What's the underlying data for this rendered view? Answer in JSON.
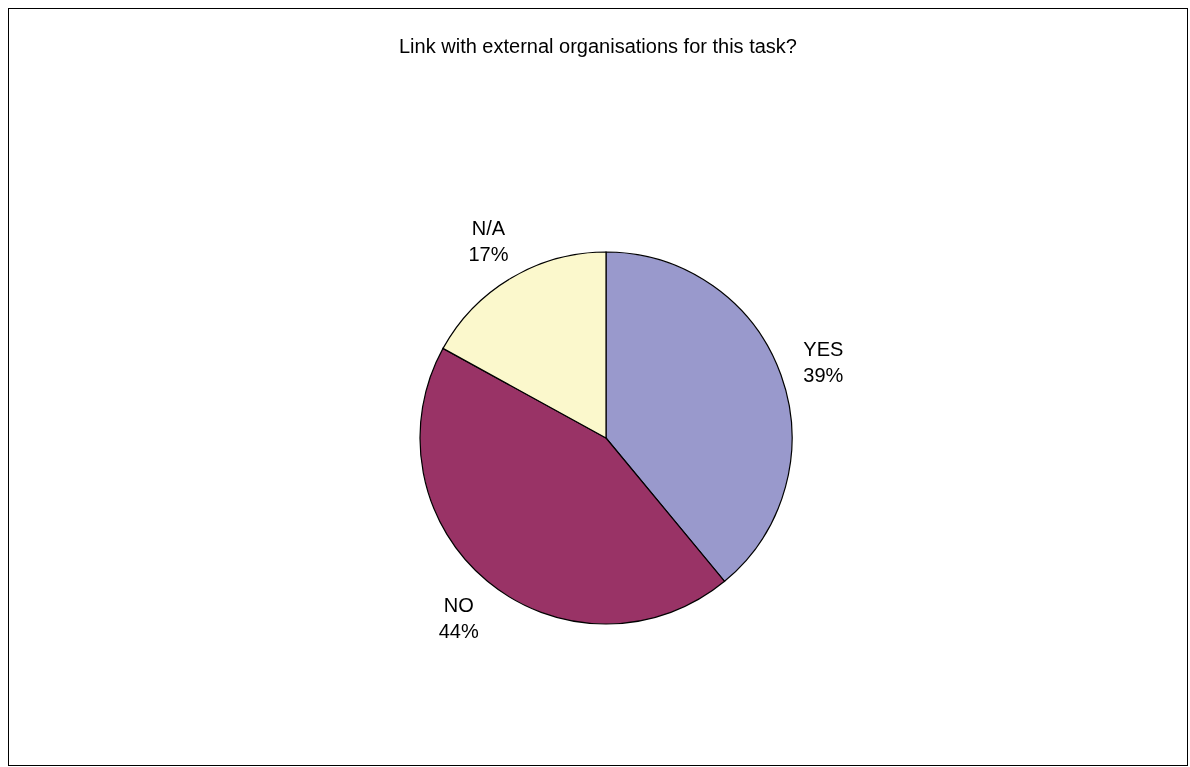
{
  "chart_data": {
    "type": "pie",
    "title": "Link with external organisations for this task?",
    "categories": [
      "YES",
      "NO",
      "N/A"
    ],
    "values": [
      39,
      44,
      17
    ],
    "colors": [
      "#9999cc",
      "#993366",
      "#fbf8cc"
    ],
    "value_labels": [
      "39%",
      "44%",
      "17%"
    ]
  }
}
